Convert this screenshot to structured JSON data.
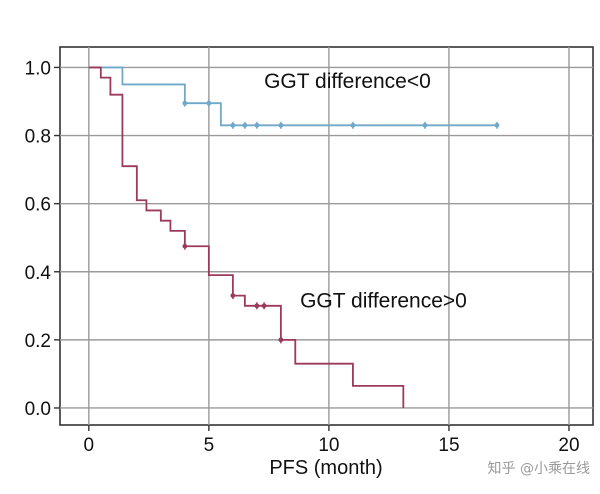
{
  "chart_data": {
    "type": "line",
    "subtype": "kaplan-meier",
    "title": "",
    "xlabel": "PFS (month)",
    "ylabel": "",
    "xlim": [
      -1.2,
      21
    ],
    "ylim": [
      -0.05,
      1.06
    ],
    "xticks": [
      0,
      5,
      10,
      15,
      20
    ],
    "xtick_labels": [
      "0",
      "5",
      "10",
      "15",
      "20"
    ],
    "yticks": [
      0.0,
      0.2,
      0.4,
      0.6,
      0.8,
      1.0
    ],
    "ytick_labels": [
      "0.0",
      "0.2",
      "0.4",
      "0.6",
      "0.8",
      "1.0"
    ],
    "grid": true,
    "series": [
      {
        "name": "GGT difference<0",
        "label": "GGT difference<0",
        "color": "#6fa8c8",
        "steps": [
          {
            "x": 0,
            "y": 1.0
          },
          {
            "x": 1.4,
            "y": 0.95
          },
          {
            "x": 4.0,
            "y": 0.895
          },
          {
            "x": 5.5,
            "y": 0.83
          }
        ],
        "end_x": 17.0,
        "censored": [
          {
            "x": 4.0,
            "y": 0.895
          },
          {
            "x": 5.0,
            "y": 0.895
          },
          {
            "x": 6.0,
            "y": 0.83
          },
          {
            "x": 6.5,
            "y": 0.83
          },
          {
            "x": 7.0,
            "y": 0.83
          },
          {
            "x": 8.0,
            "y": 0.83
          },
          {
            "x": 11.0,
            "y": 0.83
          },
          {
            "x": 14.0,
            "y": 0.83
          },
          {
            "x": 17.0,
            "y": 0.83
          }
        ]
      },
      {
        "name": "GGT difference>0",
        "label": "GGT difference>0",
        "color": "#9b3a5a",
        "steps": [
          {
            "x": 0,
            "y": 1.0
          },
          {
            "x": 0.5,
            "y": 0.97
          },
          {
            "x": 0.9,
            "y": 0.92
          },
          {
            "x": 1.4,
            "y": 0.71
          },
          {
            "x": 2.0,
            "y": 0.61
          },
          {
            "x": 2.4,
            "y": 0.58
          },
          {
            "x": 3.0,
            "y": 0.55
          },
          {
            "x": 3.4,
            "y": 0.52
          },
          {
            "x": 4.0,
            "y": 0.475
          },
          {
            "x": 5.0,
            "y": 0.39
          },
          {
            "x": 6.0,
            "y": 0.33
          },
          {
            "x": 6.5,
            "y": 0.3
          },
          {
            "x": 8.0,
            "y": 0.2
          },
          {
            "x": 8.6,
            "y": 0.13
          },
          {
            "x": 11.0,
            "y": 0.065
          },
          {
            "x": 13.1,
            "y": 0.0
          }
        ],
        "end_x": 13.1,
        "censored": [
          {
            "x": 4.0,
            "y": 0.475
          },
          {
            "x": 6.0,
            "y": 0.33
          },
          {
            "x": 7.0,
            "y": 0.3
          },
          {
            "x": 7.3,
            "y": 0.3
          },
          {
            "x": 8.0,
            "y": 0.2
          }
        ]
      }
    ],
    "annotations": [
      {
        "text": "GGT difference<0",
        "at": {
          "x": 7.3,
          "y": 0.94
        }
      },
      {
        "text": "GGT difference>0",
        "at": {
          "x": 8.8,
          "y": 0.295
        }
      }
    ]
  },
  "watermark": "知乎 @小乘在线"
}
